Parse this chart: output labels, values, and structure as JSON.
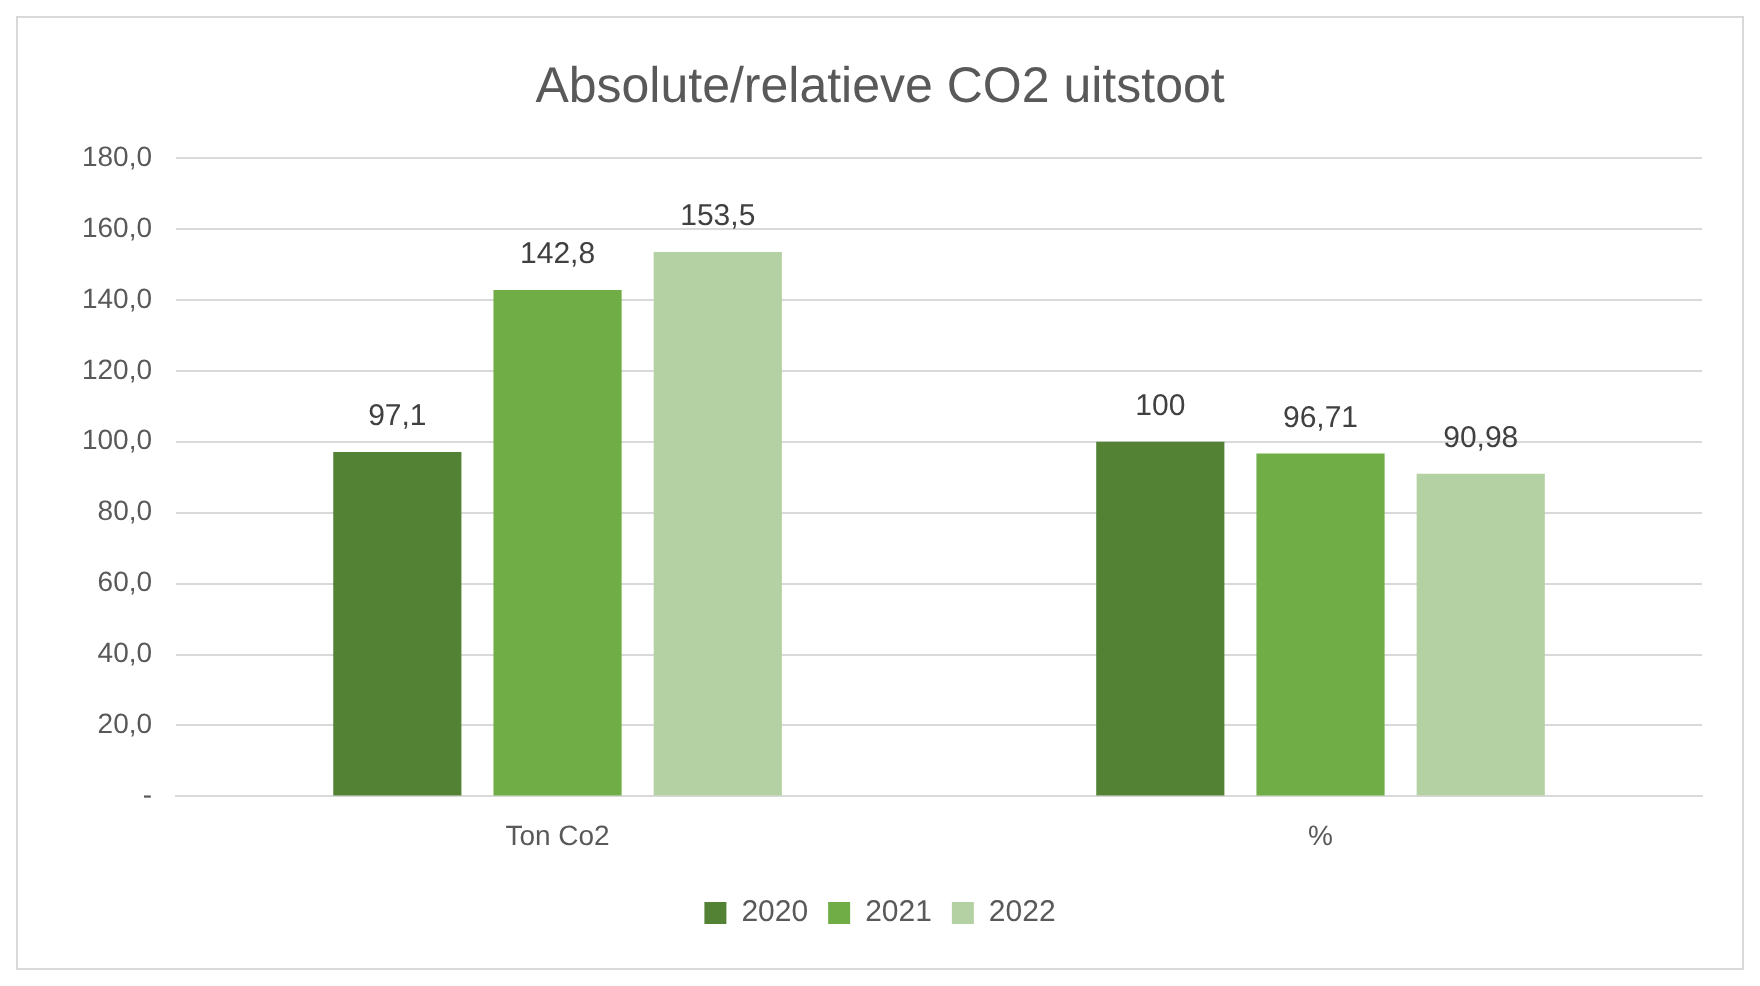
{
  "chart_data": {
    "type": "bar",
    "title": "Absolute/relatieve CO2 uitstoot",
    "categories": [
      "Ton Co2",
      "%"
    ],
    "series": [
      {
        "name": "2020",
        "color": "#548235",
        "values": [
          97.1,
          100
        ],
        "value_labels": [
          "97,1",
          "100"
        ]
      },
      {
        "name": "2021",
        "color": "#70ad47",
        "values": [
          142.8,
          96.71
        ],
        "value_labels": [
          "142,8",
          "96,71"
        ]
      },
      {
        "name": "2022",
        "color": "#b3d1a3",
        "values": [
          153.5,
          90.98
        ],
        "value_labels": [
          "153,5",
          "90,98"
        ]
      }
    ],
    "ylim": [
      0,
      180
    ],
    "yticks": [
      {
        "value": 0,
        "label": "-"
      },
      {
        "value": 20,
        "label": "20,0"
      },
      {
        "value": 40,
        "label": "40,0"
      },
      {
        "value": 60,
        "label": "60,0"
      },
      {
        "value": 80,
        "label": "80,0"
      },
      {
        "value": 100,
        "label": "100,0"
      },
      {
        "value": 120,
        "label": "120,0"
      },
      {
        "value": 140,
        "label": "140,0"
      },
      {
        "value": 160,
        "label": "160,0"
      },
      {
        "value": 180,
        "label": "180,0"
      }
    ],
    "grid": "y",
    "legend": "bottom"
  }
}
